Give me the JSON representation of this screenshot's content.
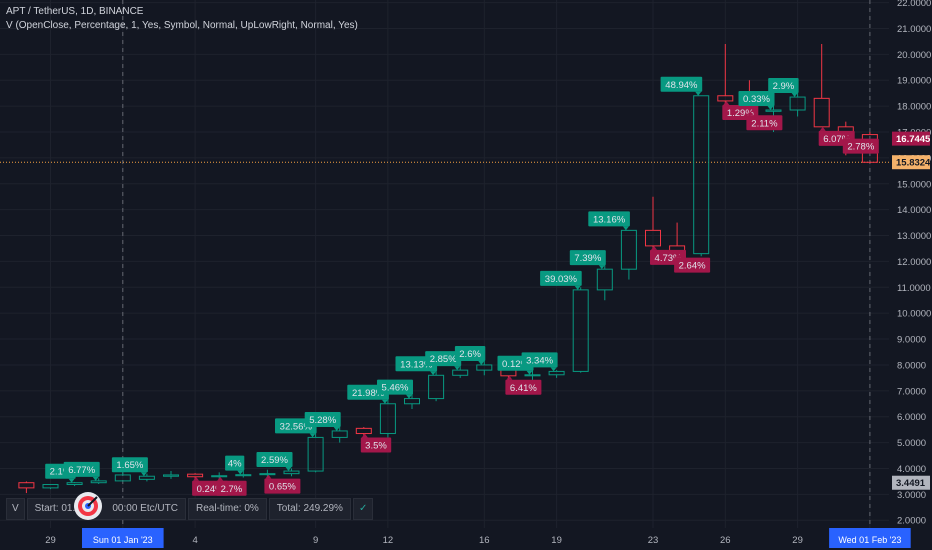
{
  "header": {
    "symbol_line": "APT / TetherUS, 1D, BINANCE",
    "indicator_line": "V (OpenClose, Percentage, 1, Yes, Symbol, Normal, UpLowRight, Normal, Yes)"
  },
  "stats_panel": {
    "v_label": "V",
    "start": "Start: 01.0",
    "start_tail": "00:00 Etc/UTC",
    "realtime": "Real-time: 0%",
    "total": "Total: 249.29%",
    "check": "✓"
  },
  "colors": {
    "background": "#131722",
    "grid": "#1e222d",
    "up": "#089981",
    "down": "#f23645",
    "up_label": "#089981",
    "down_label": "#a3174a",
    "price_line": "#f5a142",
    "date_highlight": "#2962ff"
  },
  "chart_data": {
    "type": "candlestick",
    "title": "APT / TetherUS, 1D, BINANCE",
    "y_ticks": [
      "22.0000",
      "21.0000",
      "20.0000",
      "19.0000",
      "18.0000",
      "17.0000",
      "16.0000",
      "15.0000",
      "14.0000",
      "13.0000",
      "12.0000",
      "11.0000",
      "10.0000",
      "9.0000",
      "8.0000",
      "7.0000",
      "6.0000",
      "5.0000",
      "4.0000",
      "3.0000",
      "2.0000"
    ],
    "ylim": [
      1.7,
      22.1
    ],
    "x_ticks": [
      {
        "day": 0,
        "label": "29"
      },
      {
        "day": 3,
        "label": "Sun 01 Jan '23",
        "highlight": true
      },
      {
        "day": 6,
        "label": "4"
      },
      {
        "day": 11,
        "label": "9"
      },
      {
        "day": 14,
        "label": "12"
      },
      {
        "day": 18,
        "label": "16"
      },
      {
        "day": 21,
        "label": "19"
      },
      {
        "day": 25,
        "label": "23"
      },
      {
        "day": 28,
        "label": "26"
      },
      {
        "day": 31,
        "label": "29"
      },
      {
        "day": 34,
        "label": "Wed 01 Feb '23",
        "highlight": true
      }
    ],
    "candles": [
      {
        "day": -1,
        "open": 3.45,
        "high": 3.5,
        "low": 3.05,
        "close": 3.25
      },
      {
        "day": 0,
        "open": 3.25,
        "high": 3.4,
        "low": 3.2,
        "close": 3.38
      },
      {
        "day": 1,
        "open": 3.38,
        "high": 3.48,
        "low": 3.32,
        "close": 3.45
      },
      {
        "day": 2,
        "open": 3.45,
        "high": 3.62,
        "low": 3.4,
        "close": 3.52
      },
      {
        "day": 3,
        "open": 3.52,
        "high": 3.85,
        "low": 3.5,
        "close": 3.75
      },
      {
        "day": 4,
        "open": 3.58,
        "high": 3.8,
        "low": 3.5,
        "close": 3.7
      },
      {
        "day": 5,
        "open": 3.7,
        "high": 3.9,
        "low": 3.6,
        "close": 3.75
      },
      {
        "day": 6,
        "open": 3.78,
        "high": 3.82,
        "low": 3.55,
        "close": 3.68
      },
      {
        "day": 7,
        "open": 3.68,
        "high": 3.85,
        "low": 3.55,
        "close": 3.72
      },
      {
        "day": 8,
        "open": 3.72,
        "high": 4.0,
        "low": 3.65,
        "close": 3.76
      },
      {
        "day": 9,
        "open": 3.76,
        "high": 3.95,
        "low": 3.6,
        "close": 3.8
      },
      {
        "day": 10,
        "open": 3.8,
        "high": 4.0,
        "low": 3.7,
        "close": 3.9
      },
      {
        "day": 11,
        "open": 3.9,
        "high": 5.5,
        "low": 3.85,
        "close": 5.2
      },
      {
        "day": 12,
        "open": 5.2,
        "high": 5.6,
        "low": 5.0,
        "close": 5.45
      },
      {
        "day": 13,
        "open": 5.55,
        "high": 5.6,
        "low": 5.2,
        "close": 5.35
      },
      {
        "day": 14,
        "open": 5.35,
        "high": 6.8,
        "low": 5.2,
        "close": 6.5
      },
      {
        "day": 15,
        "open": 6.5,
        "high": 6.9,
        "low": 6.3,
        "close": 6.7
      },
      {
        "day": 16,
        "open": 6.7,
        "high": 7.9,
        "low": 6.6,
        "close": 7.6
      },
      {
        "day": 17,
        "open": 7.6,
        "high": 8.0,
        "low": 7.5,
        "close": 7.8
      },
      {
        "day": 18,
        "open": 7.8,
        "high": 8.4,
        "low": 7.6,
        "close": 8.0
      },
      {
        "day": 19,
        "open": 8.1,
        "high": 8.3,
        "low": 7.2,
        "close": 7.58
      },
      {
        "day": 20,
        "open": 7.58,
        "high": 8.1,
        "low": 7.2,
        "close": 7.62
      },
      {
        "day": 21,
        "open": 7.62,
        "high": 7.8,
        "low": 7.5,
        "close": 7.75
      },
      {
        "day": 22,
        "open": 7.75,
        "high": 11.0,
        "low": 7.7,
        "close": 10.9
      },
      {
        "day": 23,
        "open": 10.9,
        "high": 12.0,
        "low": 10.5,
        "close": 11.7
      },
      {
        "day": 24,
        "open": 11.7,
        "high": 13.2,
        "low": 11.3,
        "close": 13.2
      },
      {
        "day": 25,
        "open": 13.2,
        "high": 14.5,
        "low": 12.3,
        "close": 12.6
      },
      {
        "day": 26,
        "open": 12.6,
        "high": 13.5,
        "low": 12.2,
        "close": 12.3
      },
      {
        "day": 27,
        "open": 12.3,
        "high": 18.4,
        "low": 12.2,
        "close": 18.4
      },
      {
        "day": 28,
        "open": 18.4,
        "high": 20.4,
        "low": 17.5,
        "close": 18.2
      },
      {
        "day": 29,
        "open": 18.2,
        "high": 19.0,
        "low": 17.5,
        "close": 17.8
      },
      {
        "day": 30,
        "open": 17.8,
        "high": 19.0,
        "low": 17.0,
        "close": 17.85
      },
      {
        "day": 31,
        "open": 17.85,
        "high": 18.6,
        "low": 17.6,
        "close": 18.35
      },
      {
        "day": 32,
        "open": 18.3,
        "high": 20.4,
        "low": 17.2,
        "close": 17.2
      },
      {
        "day": 33,
        "open": 17.2,
        "high": 17.4,
        "low": 16.1,
        "close": 16.9
      },
      {
        "day": 34,
        "open": 16.9,
        "high": 17.0,
        "low": 15.8,
        "close": 15.83
      }
    ],
    "labels": [
      {
        "day": 1,
        "text": "2.1%",
        "dir": "up"
      },
      {
        "day": 2,
        "text": "6.77%",
        "dir": "up"
      },
      {
        "day": 4,
        "text": "1.65%",
        "dir": "up"
      },
      {
        "day": 6,
        "text": "0.24%",
        "dir": "down"
      },
      {
        "day": 7,
        "text": "2.7%",
        "dir": "down"
      },
      {
        "day": 8,
        "text": "4%",
        "dir": "up"
      },
      {
        "day": 9,
        "text": "0.65%",
        "dir": "down"
      },
      {
        "day": 10,
        "text": "2.59%",
        "dir": "up"
      },
      {
        "day": 11,
        "text": "32.56%",
        "dir": "up"
      },
      {
        "day": 12,
        "text": "5.28%",
        "dir": "up"
      },
      {
        "day": 13,
        "text": "3.5%",
        "dir": "down"
      },
      {
        "day": 14,
        "text": "21.98%",
        "dir": "up"
      },
      {
        "day": 15,
        "text": "5.46%",
        "dir": "up"
      },
      {
        "day": 16,
        "text": "13.13%",
        "dir": "up"
      },
      {
        "day": 17,
        "text": "2.85%",
        "dir": "up"
      },
      {
        "day": 18,
        "text": "2.6%",
        "dir": "up"
      },
      {
        "day": 19,
        "text": "6.41%",
        "dir": "down"
      },
      {
        "day": 20,
        "text": "0.12%",
        "dir": "up"
      },
      {
        "day": 21,
        "text": "3.34%",
        "dir": "up"
      },
      {
        "day": 22,
        "text": "39.03%",
        "dir": "up"
      },
      {
        "day": 23,
        "text": "7.39%",
        "dir": "up"
      },
      {
        "day": 24,
        "text": "13.16%",
        "dir": "up"
      },
      {
        "day": 25,
        "text": "4.73%",
        "dir": "down"
      },
      {
        "day": 26,
        "text": "2.64%",
        "dir": "down"
      },
      {
        "day": 27,
        "text": "48.94%",
        "dir": "up"
      },
      {
        "day": 28,
        "text": "1.29%",
        "dir": "down"
      },
      {
        "day": 29,
        "text": "2.11%",
        "dir": "down"
      },
      {
        "day": 30,
        "text": "0.33%",
        "dir": "up"
      },
      {
        "day": 31,
        "text": "2.9%",
        "dir": "up"
      },
      {
        "day": 32,
        "text": "6.07%",
        "dir": "down"
      },
      {
        "day": 33,
        "text": "2.78%",
        "dir": "down"
      }
    ],
    "price_tags": [
      {
        "value": 16.7445,
        "text": "16.7445",
        "color": "#a3174a",
        "text_color": "#ffffff"
      },
      {
        "value": 15.8324,
        "text": "15.8324",
        "color": "#f5b26b",
        "text_color": "#131722"
      },
      {
        "value": 3.4491,
        "text": "3.4491",
        "color": "#b2b5be",
        "text_color": "#131722"
      }
    ],
    "current_price_line": 15.8324
  }
}
